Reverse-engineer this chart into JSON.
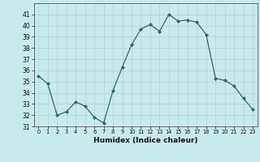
{
  "x": [
    0,
    1,
    2,
    3,
    4,
    5,
    6,
    7,
    8,
    9,
    10,
    11,
    12,
    13,
    14,
    15,
    16,
    17,
    18,
    19,
    20,
    21,
    22,
    23
  ],
  "y": [
    35.5,
    34.8,
    32.0,
    32.3,
    33.2,
    32.8,
    31.8,
    31.3,
    34.2,
    36.3,
    38.3,
    39.7,
    40.1,
    39.5,
    41.0,
    40.4,
    40.5,
    40.3,
    39.2,
    35.3,
    35.1,
    34.6,
    33.5,
    32.5
  ],
  "line_color": "#2e6b6b",
  "marker": "D",
  "marker_size": 2.0,
  "bg_color": "#c8eaea",
  "grid_color": "#aad4d4",
  "xlabel": "Humidex (Indice chaleur)",
  "ylim": [
    31,
    42
  ],
  "xlim": [
    -0.5,
    23.5
  ],
  "yticks": [
    31,
    32,
    33,
    34,
    35,
    36,
    37,
    38,
    39,
    40,
    41
  ],
  "xticks": [
    0,
    1,
    2,
    3,
    4,
    5,
    6,
    7,
    8,
    9,
    10,
    11,
    12,
    13,
    14,
    15,
    16,
    17,
    18,
    19,
    20,
    21,
    22,
    23
  ]
}
